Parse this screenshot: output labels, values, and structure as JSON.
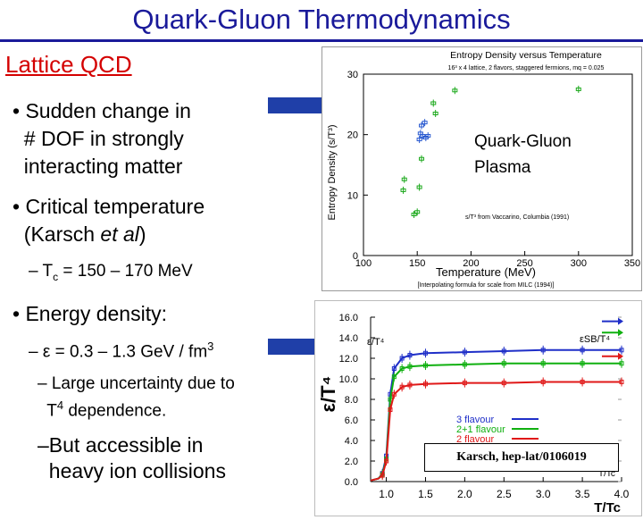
{
  "slide": {
    "title": "Quark-Gluon Thermodynamics",
    "subtitle": "Lattice QCD",
    "bullet1": "• Sudden change in\n  # DOF in strongly\n  interacting matter",
    "bullet2_a": "• Critical temperature\n  (Karsch ",
    "bullet2_em": "et al",
    "bullet2_b": ")",
    "tc_prefix": "– T",
    "tc_sub": "c",
    "tc_suffix": " = 150 – 170 MeV",
    "bullet3": "• Energy density:",
    "eps_prefix": "– ε = 0.3 – 1.3 GeV / fm",
    "eps_sup": "3",
    "unc_a": "– Large uncertainty due to\n  T",
    "unc_sup": "4",
    "unc_b": " dependence.",
    "heavy": "–But accessible in\n  heavy ion collisions",
    "colors": {
      "title": "#1a1a9a",
      "subtitle": "#d40000",
      "arrow": "#1f3fa8"
    }
  },
  "chart_data": [
    {
      "type": "scatter",
      "title": "Entropy Density versus Temperature",
      "subtitle": "16³ x 4 lattice, 2 flavors, staggered fermions, mq = 0.025",
      "xlabel": "Temperature (MeV)",
      "ylabel": "Entropy Density (s/T³)",
      "x_ticks": [
        "100",
        "150",
        "200",
        "250",
        "300",
        "350"
      ],
      "y_ticks": [
        "0",
        "10",
        "20",
        "30"
      ],
      "xlim": [
        100,
        350
      ],
      "ylim": [
        0,
        30
      ],
      "note1": "s/T³ from Vaccarino, Columbia (1991)",
      "note2": "[Interpolating formula for scale from MILC (1994)]",
      "label": "Quark-Gluon\nPlasma",
      "points": [
        {
          "x": 137,
          "y": 10.8
        },
        {
          "x": 138,
          "y": 12.6
        },
        {
          "x": 147,
          "y": 6.8
        },
        {
          "x": 150,
          "y": 7.2
        },
        {
          "x": 152,
          "y": 11.3
        },
        {
          "x": 152,
          "y": 19.2
        },
        {
          "x": 153,
          "y": 20.2
        },
        {
          "x": 154,
          "y": 21.5
        },
        {
          "x": 154,
          "y": 16.0
        },
        {
          "x": 155,
          "y": 19.8
        },
        {
          "x": 157,
          "y": 22.0
        },
        {
          "x": 158,
          "y": 19.5
        },
        {
          "x": 160,
          "y": 19.8
        },
        {
          "x": 165,
          "y": 25.2
        },
        {
          "x": 167,
          "y": 23.5
        },
        {
          "x": 185,
          "y": 27.3
        },
        {
          "x": 300,
          "y": 27.5
        }
      ]
    },
    {
      "type": "line",
      "ylabel": "ε/T⁴",
      "xlabel": "T/Tc",
      "xlim": [
        0.8,
        4.0
      ],
      "ylim": [
        0,
        16
      ],
      "x_ticks": [
        "1.0",
        "1.5",
        "2.0",
        "2.5",
        "3.0",
        "3.5",
        "4.0"
      ],
      "y_ticks": [
        "0.0",
        "2.0",
        "4.0",
        "6.0",
        "8.0",
        "10.0",
        "12.0",
        "14.0",
        "16.0"
      ],
      "curve_label": "ε/T⁴",
      "sb_label": "εSB/T⁴",
      "axis_label": "T/Tc",
      "citation": "Karsch, hep-lat/0106019",
      "series": [
        {
          "name": "3 flavour",
          "color": "#1f2fc8",
          "sb": 15.6,
          "x": [
            0.8,
            0.9,
            0.95,
            1.0,
            1.05,
            1.1,
            1.2,
            1.3,
            1.5,
            2.0,
            2.5,
            3.0,
            3.5,
            4.0
          ],
          "y": [
            0.1,
            0.3,
            0.8,
            2.5,
            8.5,
            11.0,
            12.0,
            12.3,
            12.5,
            12.6,
            12.7,
            12.8,
            12.8,
            12.8
          ]
        },
        {
          "name": "2+1 flavour",
          "color": "#10b010",
          "sb": 14.5,
          "x": [
            0.8,
            0.9,
            0.95,
            1.0,
            1.05,
            1.1,
            1.2,
            1.3,
            1.5,
            2.0,
            2.5,
            3.0,
            3.5,
            4.0
          ],
          "y": [
            0.1,
            0.3,
            0.7,
            2.2,
            8.0,
            10.2,
            11.0,
            11.2,
            11.3,
            11.4,
            11.5,
            11.5,
            11.5,
            11.5
          ]
        },
        {
          "name": "2 flavour",
          "color": "#e01818",
          "sb": 12.2,
          "x": [
            0.8,
            0.9,
            0.95,
            1.0,
            1.05,
            1.1,
            1.2,
            1.3,
            1.5,
            2.0,
            2.5,
            3.0,
            3.5,
            4.0
          ],
          "y": [
            0.1,
            0.3,
            0.6,
            2.0,
            7.0,
            8.5,
            9.2,
            9.4,
            9.5,
            9.6,
            9.6,
            9.7,
            9.7,
            9.7
          ]
        }
      ]
    }
  ]
}
